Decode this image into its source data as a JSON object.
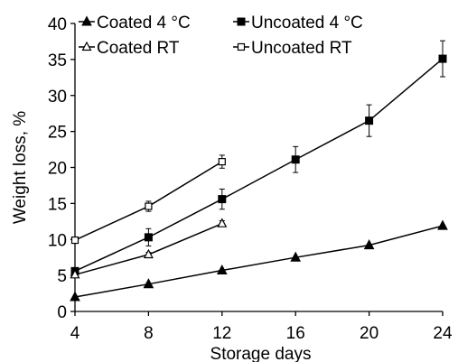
{
  "chart_data": {
    "type": "line",
    "xlabel": "Storage days",
    "ylabel": "Weight loss, %",
    "xlim": [
      4,
      24
    ],
    "ylim": [
      0,
      40
    ],
    "xticks": [
      4,
      8,
      12,
      16,
      20,
      24
    ],
    "yticks": [
      0,
      5,
      10,
      15,
      20,
      25,
      30,
      35,
      40
    ],
    "grid": false,
    "legend_position": "top",
    "series": [
      {
        "name": "Coated 4 °C",
        "marker": "filled-triangle",
        "color": "#000000",
        "x": [
          4,
          8,
          12,
          16,
          20,
          24
        ],
        "y": [
          2.0,
          3.8,
          5.7,
          7.5,
          9.2,
          11.9
        ],
        "err": [
          0,
          0,
          0,
          0,
          0,
          0
        ]
      },
      {
        "name": "Uncoated 4 °C",
        "marker": "filled-square",
        "color": "#000000",
        "x": [
          4,
          8,
          12,
          16,
          20,
          24
        ],
        "y": [
          5.6,
          10.3,
          15.6,
          21.1,
          26.5,
          35.1
        ],
        "err": [
          0.3,
          1.2,
          1.4,
          1.8,
          2.2,
          2.5
        ]
      },
      {
        "name": "Coated RT",
        "marker": "open-triangle",
        "color": "#000000",
        "x": [
          4,
          8,
          12
        ],
        "y": [
          5.1,
          7.9,
          12.2
        ],
        "err": [
          0,
          0.3,
          0.4
        ]
      },
      {
        "name": "Uncoated RT",
        "marker": "open-square",
        "color": "#000000",
        "x": [
          4,
          8,
          12
        ],
        "y": [
          9.9,
          14.6,
          20.8
        ],
        "err": [
          0.2,
          0.7,
          0.9
        ]
      }
    ]
  }
}
